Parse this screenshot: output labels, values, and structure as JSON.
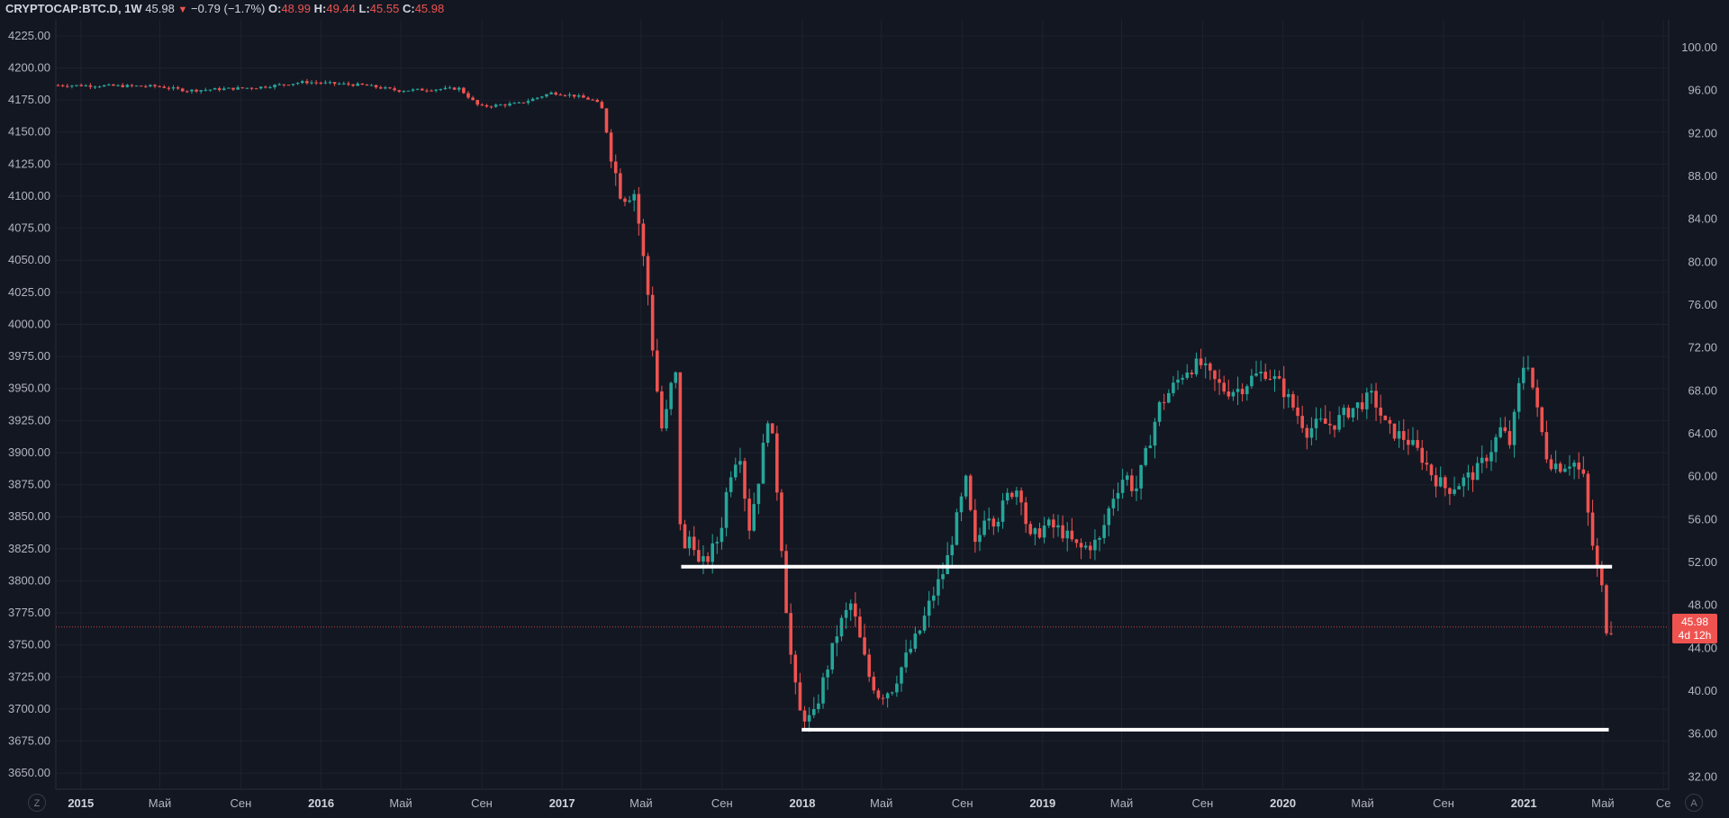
{
  "legend": {
    "symbol": "CRYPTOCAP:BTC.D, 1W",
    "last": "45.98",
    "change": "−0.79 (−1.7%)",
    "o_label": "O:",
    "o": "48.99",
    "h_label": "H:",
    "h": "49.44",
    "l_label": "L:",
    "l": "45.55",
    "c_label": "C:",
    "c": "45.98"
  },
  "price_badge": {
    "price": "45.98",
    "countdown": "4d 12h"
  },
  "buttons": {
    "left": "Z",
    "right": "A"
  },
  "colors": {
    "background": "#131722",
    "up": "#26a69a",
    "down": "#ef5350",
    "grid": "#1e222d",
    "text": "#b2b5be",
    "hline": "#ffffff"
  },
  "chart_data": {
    "type": "candlestick",
    "left_axis": {
      "ylim": [
        3637.5,
        4237.5
      ],
      "ticks": [
        "4225.00",
        "4200.00",
        "4175.00",
        "4150.00",
        "4125.00",
        "4100.00",
        "4075.00",
        "4050.00",
        "4025.00",
        "4000.00",
        "3975.00",
        "3950.00",
        "3925.00",
        "3900.00",
        "3875.00",
        "3850.00",
        "3825.00",
        "3800.00",
        "3775.00",
        "3750.00",
        "3725.00",
        "3700.00",
        "3675.00",
        "3650.00"
      ]
    },
    "right_axis": {
      "ylim": [
        30.85,
        102.6
      ],
      "ticks": [
        "100.00",
        "96.00",
        "92.00",
        "88.00",
        "84.00",
        "80.00",
        "76.00",
        "72.00",
        "68.00",
        "64.00",
        "60.00",
        "56.00",
        "52.00",
        "48.00",
        "44.00",
        "40.00",
        "36.00",
        "32.00"
      ]
    },
    "x_axis": {
      "range": [
        "2014-11-24",
        "2021-08-09"
      ],
      "ticks": [
        {
          "label": "2015",
          "date": "2015-01-01",
          "year": true
        },
        {
          "label": "Май",
          "date": "2015-05-01",
          "year": false
        },
        {
          "label": "Сен",
          "date": "2015-09-01",
          "year": false
        },
        {
          "label": "2016",
          "date": "2016-01-01",
          "year": true
        },
        {
          "label": "Май",
          "date": "2016-05-01",
          "year": false
        },
        {
          "label": "Сен",
          "date": "2016-09-01",
          "year": false
        },
        {
          "label": "2017",
          "date": "2017-01-01",
          "year": true
        },
        {
          "label": "Май",
          "date": "2017-05-01",
          "year": false
        },
        {
          "label": "Сен",
          "date": "2017-09-01",
          "year": false
        },
        {
          "label": "2018",
          "date": "2018-01-01",
          "year": true
        },
        {
          "label": "Май",
          "date": "2018-05-01",
          "year": false
        },
        {
          "label": "Сен",
          "date": "2018-09-01",
          "year": false
        },
        {
          "label": "2019",
          "date": "2019-01-01",
          "year": true
        },
        {
          "label": "Май",
          "date": "2019-05-01",
          "year": false
        },
        {
          "label": "Сен",
          "date": "2019-09-01",
          "year": false
        },
        {
          "label": "2020",
          "date": "2020-01-01",
          "year": true
        },
        {
          "label": "Май",
          "date": "2020-05-01",
          "year": false
        },
        {
          "label": "Сен",
          "date": "2020-09-01",
          "year": false
        },
        {
          "label": "2021",
          "date": "2021-01-01",
          "year": true
        },
        {
          "label": "Май",
          "date": "2021-05-01",
          "year": false
        },
        {
          "label": "Се",
          "date": "2021-08-01",
          "year": false
        }
      ]
    },
    "series_keypoints": [
      [
        "2014-11-24",
        96.5
      ],
      [
        "2015-05-01",
        96.4
      ],
      [
        "2015-06-15",
        96.0
      ],
      [
        "2015-10-01",
        96.3
      ],
      [
        "2015-12-10",
        96.8
      ],
      [
        "2016-03-10",
        96.5
      ],
      [
        "2016-05-01",
        96.0
      ],
      [
        "2016-08-01",
        96.2
      ],
      [
        "2016-09-01",
        94.5
      ],
      [
        "2016-11-01",
        94.8
      ],
      [
        "2016-12-20",
        95.8
      ],
      [
        "2017-01-25",
        95.5
      ],
      [
        "2017-02-20",
        95.1
      ],
      [
        "2017-03-05",
        94.6
      ],
      [
        "2017-03-20",
        90.0
      ],
      [
        "2017-04-05",
        86.0
      ],
      [
        "2017-04-25",
        86.5
      ],
      [
        "2017-05-15",
        77.0
      ],
      [
        "2017-05-25",
        70.0
      ],
      [
        "2017-06-05",
        64.5
      ],
      [
        "2017-06-15",
        66.5
      ],
      [
        "2017-06-25",
        71.3
      ],
      [
        "2017-07-05",
        52.0
      ],
      [
        "2017-07-20",
        55.0
      ],
      [
        "2017-08-01",
        51.5
      ],
      [
        "2017-08-15",
        52.5
      ],
      [
        "2017-09-01",
        54.5
      ],
      [
        "2017-09-15",
        60.0
      ],
      [
        "2017-10-01",
        62.7
      ],
      [
        "2017-10-15",
        55.0
      ],
      [
        "2017-11-01",
        60.5
      ],
      [
        "2017-11-15",
        66.5
      ],
      [
        "2017-11-30",
        57.0
      ],
      [
        "2017-12-10",
        48.5
      ],
      [
        "2017-12-20",
        42.0
      ],
      [
        "2017-12-31",
        38.0
      ],
      [
        "2018-01-20",
        37.2
      ],
      [
        "2018-02-01",
        40.0
      ],
      [
        "2018-02-15",
        43.0
      ],
      [
        "2018-03-01",
        46.0
      ],
      [
        "2018-03-20",
        48.2
      ],
      [
        "2018-04-01",
        45.0
      ],
      [
        "2018-04-15",
        41.5
      ],
      [
        "2018-05-01",
        39.6
      ],
      [
        "2018-05-20",
        40.2
      ],
      [
        "2018-06-10",
        43.0
      ],
      [
        "2018-07-01",
        45.5
      ],
      [
        "2018-07-20",
        48.7
      ],
      [
        "2018-08-10",
        51.6
      ],
      [
        "2018-08-25",
        55.5
      ],
      [
        "2018-09-10",
        59.5
      ],
      [
        "2018-09-25",
        53.0
      ],
      [
        "2018-10-10",
        57.0
      ],
      [
        "2018-10-25",
        55.8
      ],
      [
        "2018-11-15",
        58.5
      ],
      [
        "2018-12-01",
        59.0
      ],
      [
        "2018-12-15",
        54.0
      ],
      [
        "2019-01-10",
        55.5
      ],
      [
        "2019-02-01",
        55.0
      ],
      [
        "2019-03-01",
        53.2
      ],
      [
        "2019-04-01",
        54.0
      ],
      [
        "2019-04-20",
        58.0
      ],
      [
        "2019-05-10",
        60.3
      ],
      [
        "2019-05-25",
        58.5
      ],
      [
        "2019-06-10",
        62.0
      ],
      [
        "2019-06-30",
        66.5
      ],
      [
        "2019-07-15",
        67.8
      ],
      [
        "2019-08-10",
        70.0
      ],
      [
        "2019-09-01",
        70.5
      ],
      [
        "2019-09-20",
        69.0
      ],
      [
        "2019-10-10",
        68.0
      ],
      [
        "2019-11-01",
        68.2
      ],
      [
        "2019-11-20",
        69.3
      ],
      [
        "2019-12-10",
        69.8
      ],
      [
        "2020-01-01",
        68.5
      ],
      [
        "2020-01-20",
        66.5
      ],
      [
        "2020-02-10",
        64.3
      ],
      [
        "2020-03-01",
        65.0
      ],
      [
        "2020-03-20",
        64.8
      ],
      [
        "2020-04-10",
        66.0
      ],
      [
        "2020-05-01",
        66.8
      ],
      [
        "2020-05-20",
        67.5
      ],
      [
        "2020-06-10",
        64.5
      ],
      [
        "2020-07-10",
        63.5
      ],
      [
        "2020-08-01",
        62.0
      ],
      [
        "2020-08-20",
        60.0
      ],
      [
        "2020-09-10",
        58.8
      ],
      [
        "2020-10-01",
        59.5
      ],
      [
        "2020-10-25",
        60.5
      ],
      [
        "2020-11-15",
        62.5
      ],
      [
        "2020-12-01",
        64.5
      ],
      [
        "2020-12-15",
        63.0
      ],
      [
        "2021-01-01",
        70.0
      ],
      [
        "2021-01-10",
        71.0
      ],
      [
        "2021-01-25",
        66.0
      ],
      [
        "2021-02-10",
        61.5
      ],
      [
        "2021-03-01",
        61.0
      ],
      [
        "2021-03-20",
        61.5
      ],
      [
        "2021-04-05",
        59.8
      ],
      [
        "2021-04-15",
        55.0
      ],
      [
        "2021-04-25",
        51.5
      ],
      [
        "2021-05-05",
        49.0
      ],
      [
        "2021-05-10",
        45.98
      ]
    ],
    "horizontal_lines": [
      {
        "value": 51.6,
        "from": "2017-07-01",
        "to": "2021-05-15"
      },
      {
        "value": 36.4,
        "from": "2017-12-31",
        "to": "2021-05-10"
      }
    ],
    "current_price": 45.98
  }
}
